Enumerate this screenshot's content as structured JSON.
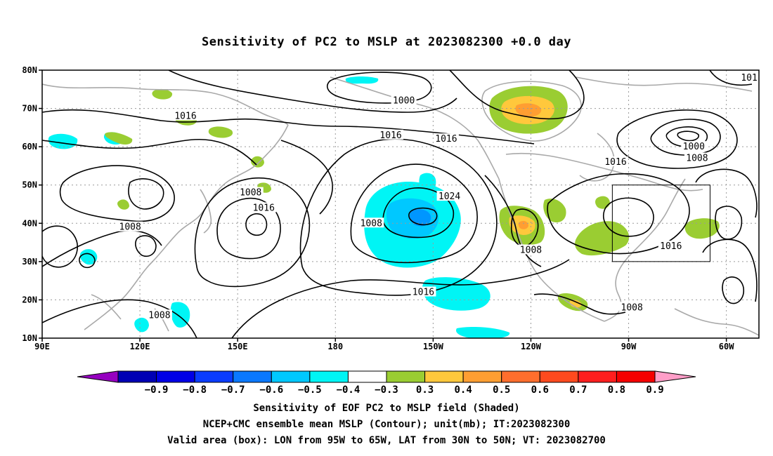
{
  "title": "Sensitivity of PC2 to MSLP at 2023082300 +0.0 day",
  "map": {
    "lon_range_deg_east": [
      90,
      310
    ],
    "lat_range": [
      10,
      80
    ],
    "lat_ticks": [
      {
        "lat": 80,
        "label": "80N"
      },
      {
        "lat": 70,
        "label": "70N"
      },
      {
        "lat": 60,
        "label": "60N"
      },
      {
        "lat": 50,
        "label": "50N"
      },
      {
        "lat": 40,
        "label": "40N"
      },
      {
        "lat": 30,
        "label": "30N"
      },
      {
        "lat": 20,
        "label": "20N"
      },
      {
        "lat": 10,
        "label": "10N"
      }
    ],
    "lon_ticks": [
      {
        "lon": 90,
        "label": "90E"
      },
      {
        "lon": 120,
        "label": "120E"
      },
      {
        "lon": 150,
        "label": "150E"
      },
      {
        "lon": 180,
        "label": "180"
      },
      {
        "lon": 210,
        "label": "150W"
      },
      {
        "lon": 240,
        "label": "120W"
      },
      {
        "lon": 270,
        "label": "90W"
      },
      {
        "lon": 300,
        "label": "60W"
      }
    ],
    "valid_box": {
      "lon": [
        265,
        295
      ],
      "lat": [
        30,
        50
      ]
    },
    "contour_labels": [
      {
        "text": "1000",
        "lon": 201,
        "lat": 72
      },
      {
        "text": "1016",
        "lon": 134,
        "lat": 68
      },
      {
        "text": "1016",
        "lon": 197,
        "lat": 63
      },
      {
        "text": "1016",
        "lon": 214,
        "lat": 62
      },
      {
        "text": "1000",
        "lon": 290,
        "lat": 60
      },
      {
        "text": "1008",
        "lon": 291,
        "lat": 57
      },
      {
        "text": "1016",
        "lon": 266,
        "lat": 56
      },
      {
        "text": "101",
        "lon": 307,
        "lat": 78
      },
      {
        "text": "1008",
        "lon": 154,
        "lat": 48
      },
      {
        "text": "1024",
        "lon": 215,
        "lat": 47
      },
      {
        "text": "1016",
        "lon": 158,
        "lat": 44
      },
      {
        "text": "1008",
        "lon": 191,
        "lat": 40
      },
      {
        "text": "1008",
        "lon": 117,
        "lat": 39
      },
      {
        "text": "1008",
        "lon": 240,
        "lat": 33
      },
      {
        "text": "1016",
        "lon": 283,
        "lat": 34
      },
      {
        "text": "1016",
        "lon": 207,
        "lat": 22
      },
      {
        "text": "1008",
        "lon": 126,
        "lat": 16
      },
      {
        "text": "1008",
        "lon": 271,
        "lat": 18
      }
    ],
    "shading_colors": {
      "neg_04": "#00f5f5",
      "neg_05": "#00c8ff",
      "neg_06": "#0096ff",
      "pos_03": "#9acd32",
      "pos_04": "#ffc83c",
      "pos_05": "#ff9e32",
      "pos_06": "#ff6e2d"
    }
  },
  "colorbar": {
    "colors": [
      "#9600c0",
      "#0000b4",
      "#0000e6",
      "#0a3cff",
      "#0a78ff",
      "#00c8ff",
      "#00f5f5",
      "#ffffff",
      "#9acd32",
      "#ffc83c",
      "#ff9e32",
      "#ff6e2d",
      "#ff4a1e",
      "#ff1e1e",
      "#f50000",
      "#ff9ec8"
    ],
    "labels": [
      "−0.9",
      "−0.8",
      "−0.7",
      "−0.6",
      "−0.5",
      "−0.4",
      "−0.3",
      "0.3",
      "0.4",
      "0.5",
      "0.6",
      "0.7",
      "0.8",
      "0.9"
    ]
  },
  "footer": {
    "line1": "Sensitivity of EOF PC2 to MSLP field (Shaded)",
    "line2": "NCEP+CMC ensemble mean MSLP (Contour); unit(mb); IT:2023082300",
    "line3": "Valid area (box): LON from 95W to 65W, LAT from 30N to 50N; VT: 2023082700"
  }
}
